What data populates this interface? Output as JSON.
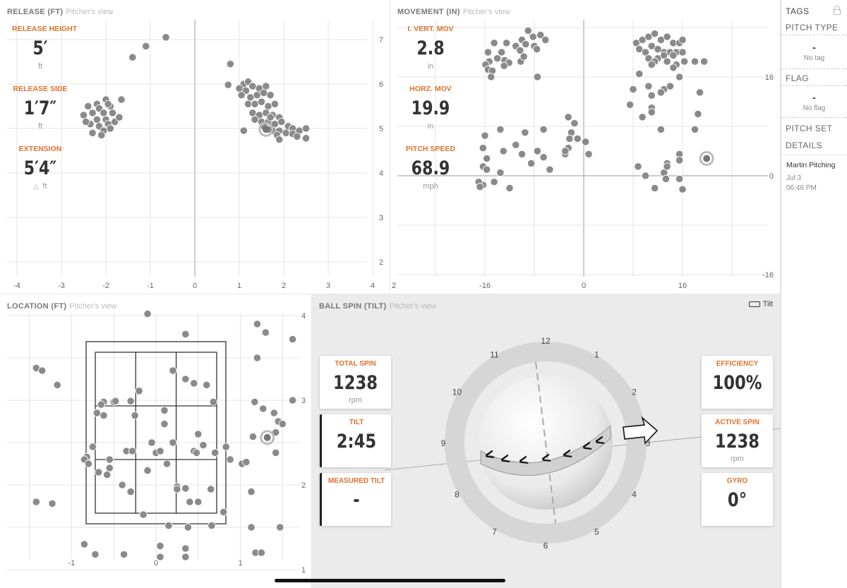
{
  "release": {
    "title": "RELEASE (FT)",
    "subtitle": "Pitcher's view",
    "stats": [
      {
        "label": "RELEASE HEIGHT",
        "value": "5′",
        "unit": "ft"
      },
      {
        "label": "RELEASE SIDE",
        "value": "1′7″",
        "unit": "ft"
      },
      {
        "label": "EXTENSION",
        "value": "5′4″",
        "unit": "ft"
      }
    ],
    "x_ticks": [
      "-4",
      "-3",
      "-2",
      "-1",
      "0",
      "1",
      "2",
      "3",
      "4"
    ],
    "y_ticks": [
      "7",
      "6",
      "5",
      "4",
      "3",
      "2"
    ],
    "points": [
      [
        -0.65,
        7.05
      ],
      [
        -1.1,
        6.85
      ],
      [
        -1.4,
        6.6
      ],
      [
        0.8,
        6.45
      ],
      [
        0.75,
        5.98
      ],
      [
        1.1,
        6.0
      ],
      [
        1.2,
        6.05
      ],
      [
        1.0,
        5.9
      ],
      [
        1.15,
        5.85
      ],
      [
        1.3,
        5.95
      ],
      [
        1.45,
        5.9
      ],
      [
        1.6,
        5.95
      ],
      [
        1.05,
        5.75
      ],
      [
        1.25,
        5.7
      ],
      [
        1.4,
        5.75
      ],
      [
        1.55,
        5.8
      ],
      [
        1.7,
        5.75
      ],
      [
        1.2,
        5.55
      ],
      [
        1.35,
        5.55
      ],
      [
        1.5,
        5.6
      ],
      [
        1.65,
        5.5
      ],
      [
        1.8,
        5.55
      ],
      [
        1.3,
        5.35
      ],
      [
        1.45,
        5.3
      ],
      [
        1.6,
        5.35
      ],
      [
        1.75,
        5.3
      ],
      [
        1.9,
        5.25
      ],
      [
        1.5,
        5.15
      ],
      [
        1.65,
        5.15
      ],
      [
        1.8,
        5.1
      ],
      [
        1.95,
        5.15
      ],
      [
        2.1,
        5.05
      ],
      [
        1.6,
        5.0
      ],
      [
        1.75,
        4.95
      ],
      [
        1.9,
        4.95
      ],
      [
        2.05,
        4.9
      ],
      [
        2.2,
        5.0
      ],
      [
        2.35,
        4.95
      ],
      [
        2.5,
        5.0
      ],
      [
        1.1,
        4.95
      ],
      [
        1.65,
        4.98
      ],
      [
        1.55,
        5.05
      ],
      [
        1.85,
        4.85
      ],
      [
        2.2,
        4.88
      ],
      [
        2.5,
        4.78
      ],
      [
        1.9,
        4.75
      ],
      [
        2.3,
        4.82
      ],
      [
        1.35,
        5.2
      ],
      [
        1.7,
        5.25
      ],
      [
        -2.0,
        5.65
      ],
      [
        -2.2,
        5.55
      ],
      [
        -1.65,
        5.65
      ],
      [
        -2.4,
        5.5
      ],
      [
        -2.15,
        5.45
      ],
      [
        -1.9,
        5.5
      ],
      [
        -2.3,
        5.35
      ],
      [
        -2.05,
        5.35
      ],
      [
        -1.85,
        5.35
      ],
      [
        -2.5,
        5.3
      ],
      [
        -2.2,
        5.2
      ],
      [
        -2.0,
        5.2
      ],
      [
        -1.8,
        5.15
      ],
      [
        -1.7,
        5.25
      ],
      [
        -2.35,
        5.1
      ],
      [
        -2.15,
        5.05
      ],
      [
        -1.95,
        5.1
      ],
      [
        -2.3,
        4.9
      ],
      [
        -2.05,
        4.95
      ],
      [
        -2.1,
        4.85
      ],
      [
        -1.9,
        5.0
      ],
      [
        -2.45,
        5.15
      ],
      [
        -1.95,
        5.55
      ]
    ],
    "highlight": [
      1.6,
      4.98
    ]
  },
  "movement": {
    "title": "MOVEMENT (IN)",
    "subtitle": "Pitcher's view",
    "stats": [
      {
        "label": "I. VERT. MOV",
        "value": "2.8",
        "unit": "in"
      },
      {
        "label": "HORZ. MOV",
        "value": "19.9",
        "unit": "in"
      },
      {
        "label": "PITCH SPEED",
        "value": "68.9",
        "unit": "mph"
      }
    ],
    "x_ticks": [
      "2",
      "-16",
      "0",
      "16"
    ],
    "y_ticks": [
      "16",
      "0",
      "-16"
    ],
    "points": [
      [
        -9,
        23.5
      ],
      [
        -8.2,
        22.5
      ],
      [
        -7,
        22.8
      ],
      [
        -6.2,
        22.0
      ],
      [
        -10,
        22.0
      ],
      [
        -9.4,
        21.3
      ],
      [
        -8,
        21.0
      ],
      [
        -7.6,
        20.5
      ],
      [
        -12.5,
        21.5
      ],
      [
        -11,
        21.0
      ],
      [
        -10.3,
        20.3
      ],
      [
        -13.3,
        20.0
      ],
      [
        -14.5,
        21.5
      ],
      [
        -15.5,
        20.0
      ],
      [
        -14.0,
        19.0
      ],
      [
        -15.3,
        18.5
      ],
      [
        -12.8,
        18.7
      ],
      [
        -12.1,
        18.3
      ],
      [
        -15.9,
        18.0
      ],
      [
        -12.9,
        17.8
      ],
      [
        -15.5,
        17.2
      ],
      [
        -14.8,
        17.0
      ],
      [
        -15.0,
        16.0
      ],
      [
        -10.2,
        18.5
      ],
      [
        -9.7,
        19.3
      ],
      [
        -7.5,
        16.0
      ],
      [
        8.5,
        21.5
      ],
      [
        9.5,
        22.0
      ],
      [
        10.5,
        22.5
      ],
      [
        11.5,
        23.0
      ],
      [
        12.5,
        22.0
      ],
      [
        13.5,
        22.5
      ],
      [
        14.5,
        21.5
      ],
      [
        15.5,
        21.5
      ],
      [
        16.0,
        22.0
      ],
      [
        9.0,
        20.5
      ],
      [
        10.0,
        20.0
      ],
      [
        11.0,
        21.0
      ],
      [
        12.0,
        20.5
      ],
      [
        13.0,
        20.0
      ],
      [
        14.0,
        20.0
      ],
      [
        15.0,
        20.0
      ],
      [
        16.0,
        20.0
      ],
      [
        12.0,
        19.0
      ],
      [
        13.0,
        19.5
      ],
      [
        14.5,
        19.5
      ],
      [
        10.5,
        19.0
      ],
      [
        11.5,
        18.5
      ],
      [
        13.5,
        18.5
      ],
      [
        15.0,
        18.0
      ],
      [
        16.3,
        18.5
      ],
      [
        11.0,
        18.0
      ],
      [
        14.5,
        17.5
      ],
      [
        15.5,
        16.0
      ],
      [
        18.0,
        18.5
      ],
      [
        19.5,
        18.5
      ],
      [
        9.0,
        16.5
      ],
      [
        10.5,
        14.5
      ],
      [
        13.0,
        14.0
      ],
      [
        14.0,
        14.5
      ],
      [
        12.5,
        13.5
      ],
      [
        8.0,
        14.0
      ],
      [
        11.0,
        13.0
      ],
      [
        7.5,
        11.5
      ],
      [
        11.0,
        11.0
      ],
      [
        11.0,
        10.3
      ],
      [
        18.5,
        10.0
      ],
      [
        18.8,
        13.5
      ],
      [
        9.5,
        9.5
      ],
      [
        12.5,
        7.5
      ],
      [
        18.0,
        7.5
      ],
      [
        -2.5,
        9.5
      ],
      [
        -1.5,
        8.5
      ],
      [
        -2.0,
        7.0
      ],
      [
        -2.3,
        6.0
      ],
      [
        0.3,
        5.5
      ],
      [
        -1.0,
        6.0
      ],
      [
        0.8,
        3.5
      ],
      [
        -2.5,
        4.5
      ],
      [
        -3.0,
        3.5
      ],
      [
        -3.0,
        4.0
      ],
      [
        -6.5,
        7.5
      ],
      [
        -9.5,
        7.0
      ],
      [
        -11.0,
        5.0
      ],
      [
        -13.5,
        7.5
      ],
      [
        -16.0,
        6.5
      ],
      [
        -16.3,
        4.5
      ],
      [
        -15.7,
        2.8
      ],
      [
        -16.3,
        1.5
      ],
      [
        -15.7,
        1.0
      ],
      [
        -13.0,
        4.0
      ],
      [
        -13.5,
        0.5
      ],
      [
        -10.0,
        3.5
      ],
      [
        -8.5,
        2.0
      ],
      [
        -7.5,
        4.0
      ],
      [
        -6.5,
        3.0
      ],
      [
        -5.5,
        1.0
      ],
      [
        -14.5,
        -1.0
      ],
      [
        -16.3,
        -1.5
      ],
      [
        -17.0,
        -1.0
      ],
      [
        -16.8,
        -1.8
      ],
      [
        -12.0,
        -2.0
      ],
      [
        10.0,
        0.0
      ],
      [
        15.5,
        -0.5
      ],
      [
        13.5,
        2.0
      ],
      [
        15.5,
        3.5
      ],
      [
        13.0,
        0.5
      ],
      [
        11.5,
        -2.0
      ],
      [
        16.0,
        -2.2
      ],
      [
        15.5,
        2.5
      ],
      [
        13.3,
        -0.5
      ],
      [
        8.8,
        1.5
      ],
      [
        13.5,
        1.5
      ]
    ],
    "highlight": [
      19.9,
      2.8
    ]
  },
  "location": {
    "title": "LOCATION (FT)",
    "subtitle": "Pitcher's view",
    "x_ticks": [
      "-1",
      "0",
      "1"
    ],
    "y_ticks": [
      "4",
      "3",
      "2",
      "1"
    ],
    "points": [
      [
        -0.1,
        4.02
      ],
      [
        0.35,
        3.78
      ],
      [
        -1.42,
        3.38
      ],
      [
        -1.35,
        3.35
      ],
      [
        -0.2,
        3.11
      ],
      [
        -1.17,
        3.18
      ],
      [
        0.2,
        3.35
      ],
      [
        0.35,
        3.25
      ],
      [
        0.45,
        3.2
      ],
      [
        0.6,
        3.18
      ],
      [
        1.2,
        3.9
      ],
      [
        1.3,
        3.8
      ],
      [
        1.62,
        3.72
      ],
      [
        1.2,
        3.5
      ],
      [
        -0.62,
        2.98
      ],
      [
        -0.65,
        2.95
      ],
      [
        -0.5,
        2.98
      ],
      [
        -0.48,
        2.99
      ],
      [
        -0.3,
        2.99
      ],
      [
        -0.7,
        2.85
      ],
      [
        -0.62,
        2.82
      ],
      [
        -0.25,
        2.82
      ],
      [
        0.1,
        2.88
      ],
      [
        0.1,
        2.72
      ],
      [
        0.68,
        2.98
      ],
      [
        1.17,
        2.98
      ],
      [
        1.27,
        2.9
      ],
      [
        1.4,
        2.85
      ],
      [
        1.45,
        2.75
      ],
      [
        0.2,
        2.5
      ],
      [
        0.5,
        2.6
      ],
      [
        -0.05,
        2.5
      ],
      [
        0.56,
        2.47
      ],
      [
        0.83,
        2.45
      ],
      [
        -0.75,
        2.45
      ],
      [
        -0.35,
        2.4
      ],
      [
        -0.28,
        2.4
      ],
      [
        0.0,
        2.38
      ],
      [
        0.05,
        2.4
      ],
      [
        0.7,
        2.38
      ],
      [
        0.45,
        2.4
      ],
      [
        0.48,
        2.38
      ],
      [
        -0.82,
        2.33
      ],
      [
        -0.85,
        2.3
      ],
      [
        -0.8,
        2.25
      ],
      [
        -0.55,
        2.3
      ],
      [
        0.13,
        2.25
      ],
      [
        0.88,
        2.3
      ],
      [
        1.02,
        2.25
      ],
      [
        1.07,
        2.27
      ],
      [
        -0.55,
        2.2
      ],
      [
        -0.1,
        2.17
      ],
      [
        -0.68,
        2.15
      ],
      [
        -0.58,
        2.12
      ],
      [
        0.25,
        1.98
      ],
      [
        0.35,
        1.96
      ],
      [
        0.25,
        1.95
      ],
      [
        -0.3,
        1.92
      ],
      [
        -0.4,
        2.0
      ],
      [
        0.65,
        1.95
      ],
      [
        1.13,
        1.92
      ],
      [
        0.4,
        1.8
      ],
      [
        0.5,
        1.8
      ],
      [
        1.15,
        2.57
      ],
      [
        1.42,
        2.62
      ],
      [
        1.5,
        2.72
      ],
      [
        1.42,
        2.38
      ],
      [
        1.62,
        3.0
      ],
      [
        -1.42,
        1.8
      ],
      [
        -1.23,
        1.78
      ],
      [
        -0.15,
        1.65
      ],
      [
        0.8,
        1.68
      ],
      [
        0.15,
        1.52
      ],
      [
        0.38,
        1.5
      ],
      [
        0.66,
        1.52
      ],
      [
        1.13,
        1.5
      ],
      [
        1.47,
        1.5
      ],
      [
        -0.85,
        1.3
      ],
      [
        0.05,
        1.28
      ],
      [
        0.35,
        1.25
      ],
      [
        -0.72,
        1.18
      ],
      [
        -0.38,
        1.18
      ],
      [
        0.35,
        1.15
      ],
      [
        1.18,
        1.2
      ],
      [
        1.25,
        1.2
      ],
      [
        0.05,
        1.15
      ]
    ],
    "highlight": [
      1.32,
      2.56
    ]
  },
  "ball_spin": {
    "title": "BALL SPIN (TILT)",
    "subtitle": "Pitcher's view",
    "toggle_label": "Tilt",
    "clock_numbers": [
      "12",
      "1",
      "2",
      "3",
      "4",
      "5",
      "6",
      "7",
      "8",
      "9",
      "10",
      "11"
    ],
    "left_cards": [
      {
        "label": "TOTAL SPIN",
        "value": "1238",
        "unit": "rpm"
      },
      {
        "label": "TILT",
        "value": "2:45",
        "unit": ""
      },
      {
        "label": "MEASURED TILT",
        "value": "-",
        "unit": ""
      }
    ],
    "right_cards": [
      {
        "label": "EFFICIENCY",
        "value": "100%",
        "unit": ""
      },
      {
        "label": "ACTIVE SPIN",
        "value": "1238",
        "unit": "rpm"
      },
      {
        "label": "GYRO",
        "value": "0°",
        "unit": ""
      }
    ]
  },
  "sidebar": {
    "tags_label": "TAGS",
    "pitch_type_label": "PITCH TYPE",
    "pitch_type_value": "-",
    "pitch_type_text": "No tag",
    "flag_label": "FLAG",
    "flag_value": "-",
    "flag_text": "No flag",
    "pitch_set_label": "PITCH SET",
    "details_label": "DETAILS",
    "session_name": "Martin Pitching",
    "session_date": "Jul 3",
    "session_time": "06:46 PM"
  },
  "colors": {
    "accent": "#e3702b",
    "dot": "#8a8a8a",
    "grid": "#e4e4e4"
  }
}
